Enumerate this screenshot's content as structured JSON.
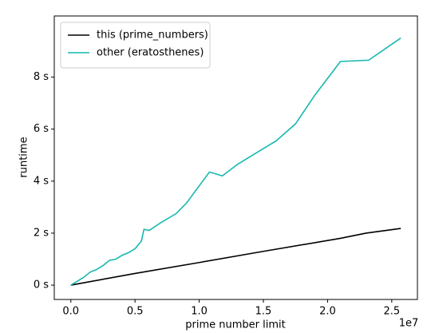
{
  "chart_data": {
    "type": "line",
    "xlabel": "prime number limit",
    "ylabel": "runtime",
    "x_offset_label": "1e7",
    "xlim": [
      -1290000,
      27000000
    ],
    "ylim": [
      -0.55,
      10.35
    ],
    "xticks": [
      {
        "value": 0,
        "label": "0.0"
      },
      {
        "value": 5000000,
        "label": "0.5"
      },
      {
        "value": 10000000,
        "label": "1.0"
      },
      {
        "value": 15000000,
        "label": "1.5"
      },
      {
        "value": 20000000,
        "label": "2.0"
      },
      {
        "value": 25000000,
        "label": "2.5"
      }
    ],
    "yticks": [
      {
        "value": 0,
        "label": "0 s"
      },
      {
        "value": 2,
        "label": "2 s"
      },
      {
        "value": 4,
        "label": "4 s"
      },
      {
        "value": 6,
        "label": "6 s"
      },
      {
        "value": 8,
        "label": "8 s"
      }
    ],
    "legend": "upper left",
    "series": [
      {
        "name": "this (prime_numbers)",
        "color": "#000000",
        "x": [
          0,
          5000000,
          10000000,
          15000000,
          21000000,
          23000000,
          25700000
        ],
        "values": [
          0,
          0.45,
          0.87,
          1.3,
          1.8,
          2.0,
          2.18
        ]
      },
      {
        "name": "other (eratosthenes)",
        "color": "#17b8b0",
        "x": [
          0,
          500000,
          1000000,
          1500000,
          2000000,
          2500000,
          3000000,
          3500000,
          4000000,
          4500000,
          5000000,
          5500000,
          5700000,
          6100000,
          7000000,
          8200000,
          9000000,
          10800000,
          11800000,
          13000000,
          14500000,
          16000000,
          17500000,
          19000000,
          21000000,
          23200000,
          25700000
        ],
        "values": [
          0,
          0.15,
          0.3,
          0.5,
          0.6,
          0.75,
          0.95,
          1.0,
          1.15,
          1.25,
          1.4,
          1.7,
          2.15,
          2.1,
          2.4,
          2.75,
          3.15,
          4.35,
          4.2,
          4.65,
          5.1,
          5.55,
          6.2,
          7.3,
          8.6,
          8.65,
          9.5
        ]
      }
    ]
  }
}
